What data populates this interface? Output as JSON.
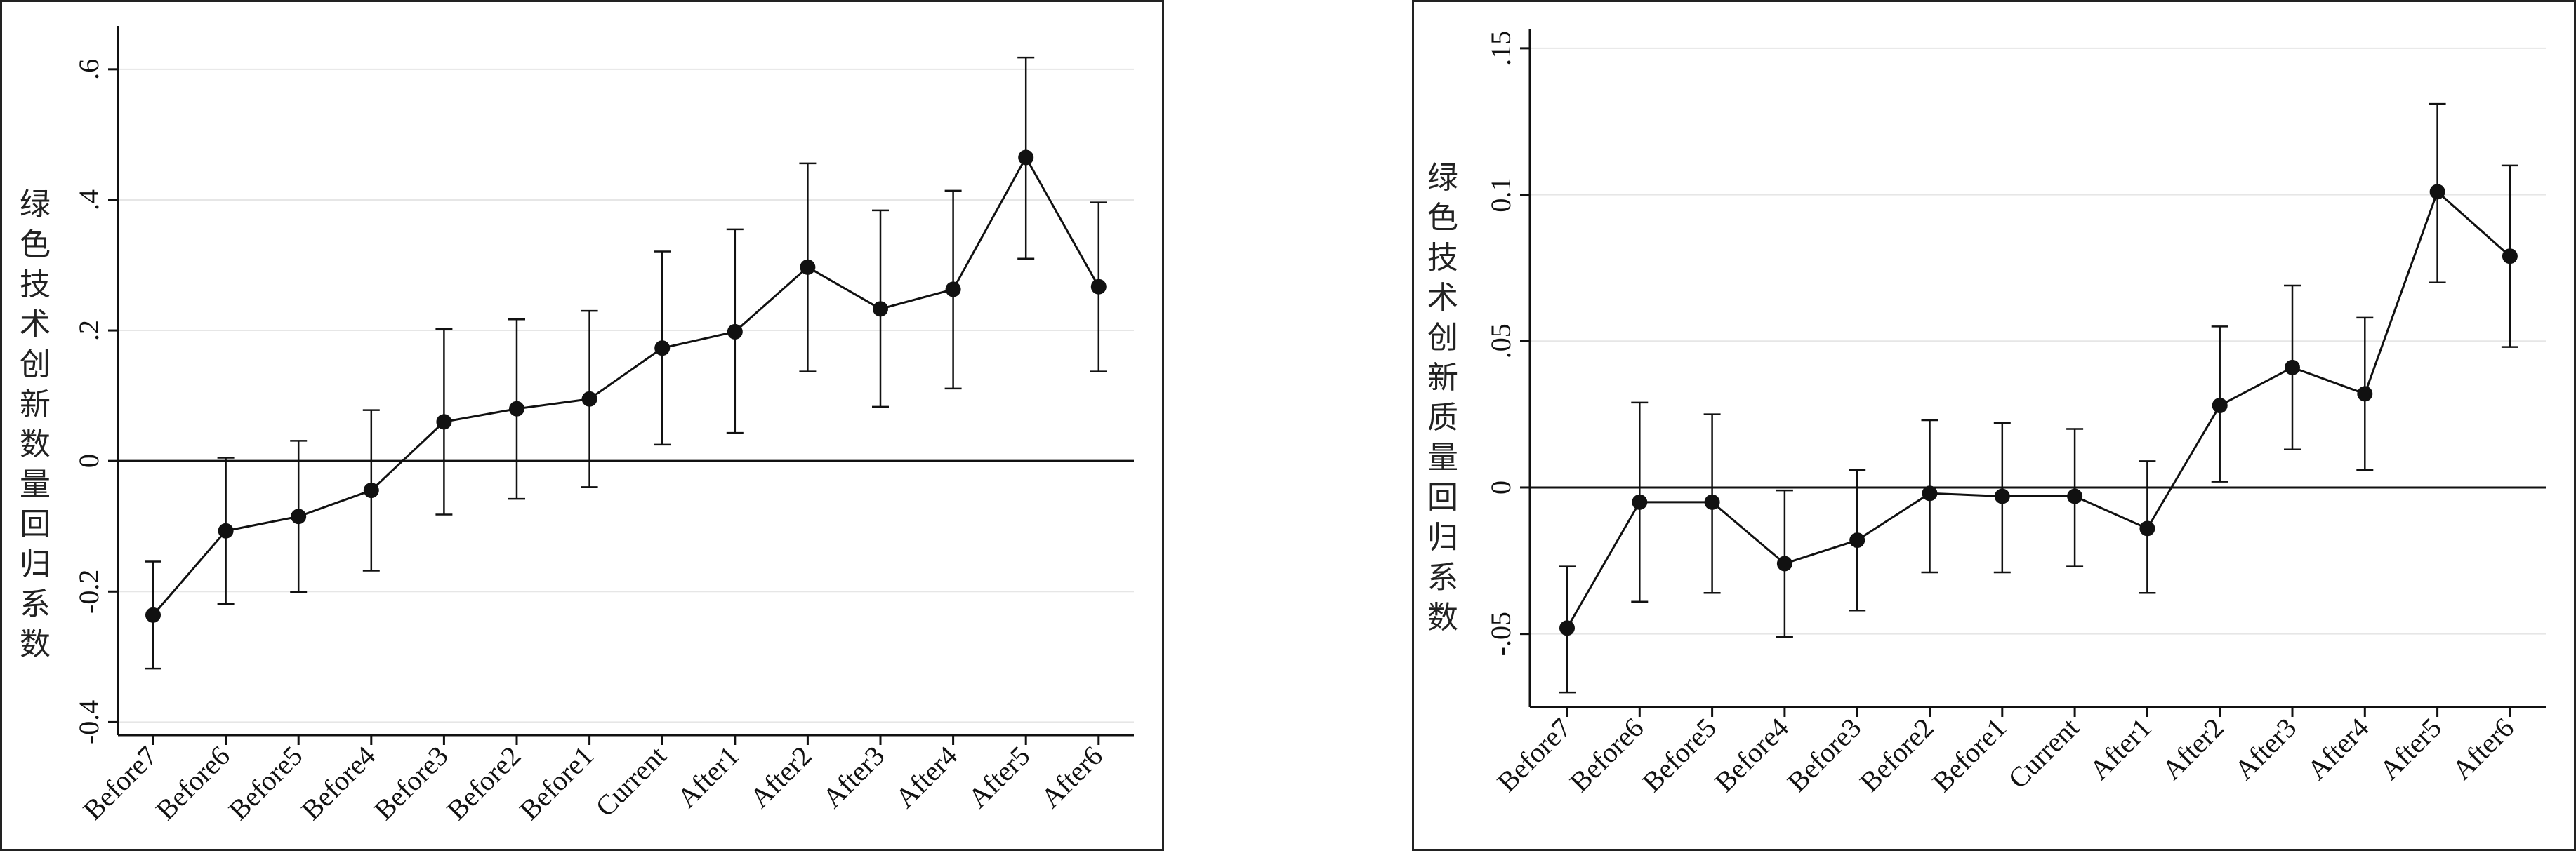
{
  "chart_data": [
    {
      "type": "line",
      "ylabel": "绿色技术创新数量回归系数",
      "ylim": [
        -0.42,
        0.66
      ],
      "yticks": [
        -0.4,
        -0.2,
        0,
        0.2,
        0.4,
        0.6
      ],
      "ytick_labels": [
        "-0.4",
        "-0.2",
        "0",
        ".2",
        ".4",
        ".6"
      ],
      "grid": true,
      "reference_line": 0,
      "categories": [
        "Before7",
        "Before6",
        "Before5",
        "Before4",
        "Before3",
        "Before2",
        "Before1",
        "Current",
        "After1",
        "After2",
        "After3",
        "After4",
        "After5",
        "After6"
      ],
      "series": [
        {
          "values": [
            -0.236,
            -0.107,
            -0.085,
            -0.045,
            0.06,
            0.08,
            0.095,
            0.173,
            0.198,
            0.297,
            0.233,
            0.263,
            0.465,
            0.267
          ],
          "ci_lower": [
            -0.318,
            -0.219,
            -0.201,
            -0.168,
            -0.082,
            -0.058,
            -0.04,
            0.025,
            0.043,
            0.137,
            0.083,
            0.111,
            0.31,
            0.137
          ],
          "ci_upper": [
            -0.154,
            0.005,
            0.031,
            0.078,
            0.202,
            0.217,
            0.23,
            0.321,
            0.355,
            0.456,
            0.384,
            0.414,
            0.618,
            0.396
          ]
        }
      ]
    },
    {
      "type": "line",
      "ylabel": "绿色技术创新质量回归系数",
      "ylim": [
        -0.075,
        0.155
      ],
      "yticks": [
        -0.05,
        0,
        0.05,
        0.1,
        0.15
      ],
      "ytick_labels": [
        "-.05",
        "0",
        ".05",
        "0.1",
        ".15"
      ],
      "grid": true,
      "reference_line": 0,
      "categories": [
        "Before7",
        "Before6",
        "Before5",
        "Before4",
        "Before3",
        "Before2",
        "Before1",
        "Current",
        "After1",
        "After2",
        "After3",
        "After4",
        "After5",
        "After6"
      ],
      "series": [
        {
          "values": [
            -0.048,
            -0.005,
            -0.005,
            -0.026,
            -0.018,
            -0.002,
            -0.003,
            -0.003,
            -0.014,
            0.028,
            0.041,
            0.032,
            0.101,
            0.079
          ],
          "ci_lower": [
            -0.07,
            -0.039,
            -0.036,
            -0.051,
            -0.042,
            -0.029,
            -0.029,
            -0.027,
            -0.036,
            0.002,
            0.013,
            0.006,
            0.07,
            0.048
          ],
          "ci_upper": [
            -0.027,
            0.029,
            0.025,
            -0.001,
            0.006,
            0.023,
            0.022,
            0.02,
            0.009,
            0.055,
            0.069,
            0.058,
            0.131,
            0.11
          ]
        }
      ]
    }
  ]
}
